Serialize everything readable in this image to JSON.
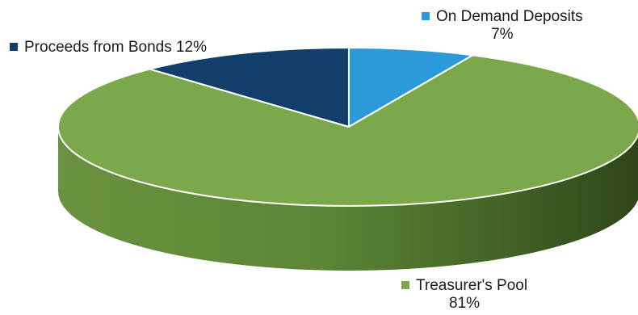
{
  "chart_data": {
    "type": "pie",
    "style": "3d",
    "slices": [
      {
        "name": "On Demand Deposits",
        "value": 7,
        "label": "On Demand Deposits",
        "pct_label": "7%",
        "color": "#2c9ad8"
      },
      {
        "name": "Proceeds from Bonds",
        "value": 12,
        "label": "Proceeds from Bonds 12%",
        "pct_label": "",
        "color": "#123f6a"
      },
      {
        "name": "Treasurer's Pool",
        "value": 81,
        "label": "Treasurer's Pool",
        "pct_label": "81%",
        "color": "#7aa84a"
      }
    ]
  }
}
